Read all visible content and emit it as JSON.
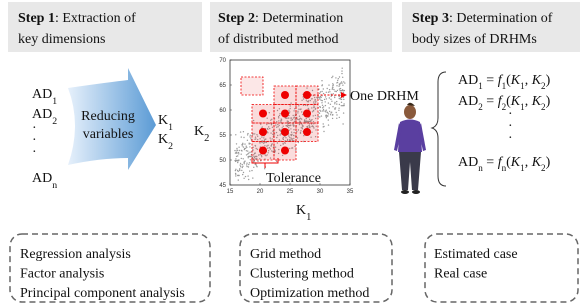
{
  "steps": [
    {
      "label": "Step 1",
      "title": [
        ": Extraction of",
        "key dimensions"
      ]
    },
    {
      "label": "Step 2",
      "title": [
        ": Determination",
        "of distributed method"
      ]
    },
    {
      "label": "Step 3",
      "title": [
        ": Determination of",
        "body sizes of DRHMs"
      ]
    }
  ],
  "step1": {
    "dims": [
      [
        "AD",
        "1"
      ],
      [
        "AD",
        "2"
      ],
      [
        "·"
      ],
      [
        "·"
      ],
      [
        "·"
      ],
      [
        "AD",
        "n"
      ]
    ],
    "arrow": [
      "Reducing",
      "variables"
    ],
    "keys": [
      [
        "K",
        "1"
      ],
      [
        "K",
        "2"
      ]
    ]
  },
  "step2": {
    "y_label": [
      "K",
      "2"
    ],
    "x_label": [
      "K",
      "1"
    ],
    "xticks": [
      15,
      20,
      25,
      30,
      35
    ],
    "yticks": [
      45,
      50,
      55,
      60,
      65,
      70
    ],
    "callout": "One DRHM",
    "tolerance": "Tolerance"
  },
  "step3": {
    "equations": [
      [
        "AD",
        "1",
        " = ",
        "f",
        "1",
        "(",
        "K",
        "1",
        ", ",
        "K",
        "2",
        ")"
      ],
      [
        "AD",
        "2",
        " = ",
        "f",
        "2",
        "(",
        "K",
        "1",
        ", ",
        "K",
        "2",
        ")"
      ],
      [
        "·"
      ],
      [
        "·"
      ],
      [
        "·"
      ],
      [
        "AD",
        "n",
        " = ",
        "f",
        "n",
        "(",
        "K",
        "1",
        ", ",
        "K",
        "2",
        ")"
      ]
    ]
  },
  "methods": [
    [
      "Regression analysis",
      "Factor analysis",
      "Principal component analysis"
    ],
    [
      "Grid method",
      "Clustering method",
      "Optimization method"
    ],
    [
      "Estimated case",
      "Real case"
    ]
  ]
}
